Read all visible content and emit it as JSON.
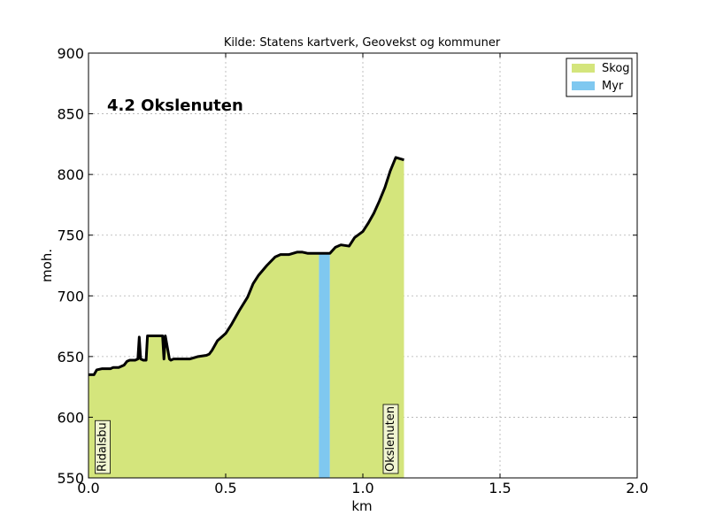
{
  "chart_data": {
    "type": "area",
    "title": "Kilde: Statens kartverk, Geovekst og kommuner",
    "annotation": "4.2 Okslenuten",
    "xlabel": "km",
    "ylabel": "moh.",
    "xlim": [
      0.0,
      2.0
    ],
    "ylim": [
      550,
      900
    ],
    "xticks": [
      0.0,
      0.5,
      1.0,
      1.5,
      2.0
    ],
    "xtick_labels": [
      "0.0",
      "0.5",
      "1.0",
      "1.5",
      "2.0"
    ],
    "yticks": [
      550,
      600,
      650,
      700,
      750,
      800,
      850,
      900
    ],
    "ytick_labels": [
      "550",
      "600",
      "650",
      "700",
      "750",
      "800",
      "850",
      "900"
    ],
    "grid": true,
    "legend_position": "top-right",
    "legend": [
      {
        "label": "Skog",
        "color": "#d4e57c"
      },
      {
        "label": "Myr",
        "color": "#7fc8f0"
      }
    ],
    "profile": {
      "x": [
        0.0,
        0.02,
        0.03,
        0.05,
        0.08,
        0.09,
        0.11,
        0.13,
        0.14,
        0.15,
        0.17,
        0.18,
        0.185,
        0.19,
        0.2,
        0.21,
        0.215,
        0.22,
        0.27,
        0.275,
        0.28,
        0.295,
        0.3,
        0.31,
        0.33,
        0.37,
        0.4,
        0.43,
        0.44,
        0.45,
        0.47,
        0.48,
        0.49,
        0.5,
        0.52,
        0.55,
        0.58,
        0.6,
        0.62,
        0.65,
        0.68,
        0.7,
        0.73,
        0.76,
        0.78,
        0.8,
        0.83,
        0.85,
        0.88,
        0.9,
        0.92,
        0.95,
        0.97,
        1.0,
        1.02,
        1.04,
        1.06,
        1.08,
        1.1,
        1.12,
        1.15
      ],
      "y": [
        635,
        635,
        639,
        640,
        640,
        641,
        641,
        643,
        646,
        647,
        647,
        648,
        666,
        648,
        647,
        647,
        667,
        667,
        667,
        648,
        667,
        648,
        647,
        648,
        648,
        648,
        650,
        651,
        652,
        655,
        663,
        665,
        667,
        669,
        676,
        688,
        699,
        710,
        717,
        725,
        732,
        734,
        734,
        736,
        736,
        735,
        735,
        735,
        735,
        740,
        742,
        741,
        748,
        753,
        760,
        768,
        778,
        789,
        803,
        814,
        812
      ]
    },
    "segments": [
      {
        "label": "Skog",
        "from": 0.0,
        "to": 0.84
      },
      {
        "label": "Myr",
        "from": 0.84,
        "to": 0.88
      },
      {
        "label": "Skog",
        "from": 0.88,
        "to": 1.15
      }
    ],
    "place_labels": [
      {
        "text": "Ridalsbu",
        "x": 0.05
      },
      {
        "text": "Okslenuten",
        "x": 1.1
      }
    ]
  }
}
